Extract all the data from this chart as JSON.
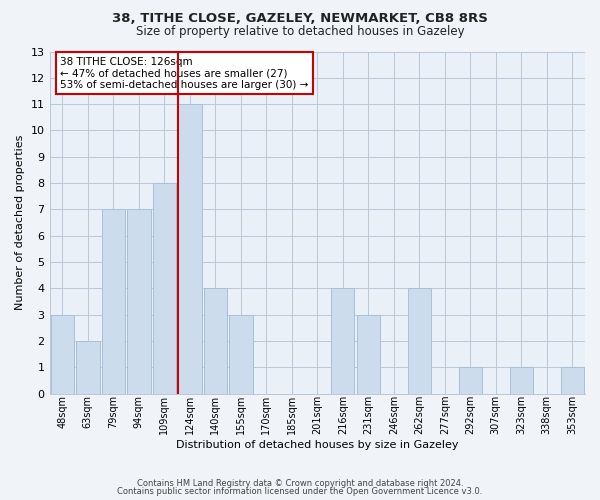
{
  "title_line1": "38, TITHE CLOSE, GAZELEY, NEWMARKET, CB8 8RS",
  "title_line2": "Size of property relative to detached houses in Gazeley",
  "xlabel": "Distribution of detached houses by size in Gazeley",
  "ylabel": "Number of detached properties",
  "footer_line1": "Contains HM Land Registry data © Crown copyright and database right 2024.",
  "footer_line2": "Contains public sector information licensed under the Open Government Licence v3.0.",
  "annotation_line1": "38 TITHE CLOSE: 126sqm",
  "annotation_line2": "← 47% of detached houses are smaller (27)",
  "annotation_line3": "53% of semi-detached houses are larger (30) →",
  "bar_labels": [
    "48sqm",
    "63sqm",
    "79sqm",
    "94sqm",
    "109sqm",
    "124sqm",
    "140sqm",
    "155sqm",
    "170sqm",
    "185sqm",
    "201sqm",
    "216sqm",
    "231sqm",
    "246sqm",
    "262sqm",
    "277sqm",
    "292sqm",
    "307sqm",
    "323sqm",
    "338sqm",
    "353sqm"
  ],
  "bar_values": [
    3,
    2,
    7,
    7,
    8,
    11,
    4,
    3,
    0,
    0,
    0,
    4,
    3,
    0,
    4,
    0,
    1,
    0,
    1,
    0,
    1
  ],
  "bar_color": "#ccdcec",
  "bar_edgecolor": "#a8c0d8",
  "highlight_index": 5,
  "highlight_line_color": "#cc0000",
  "ylim": [
    0,
    13
  ],
  "yticks": [
    0,
    1,
    2,
    3,
    4,
    5,
    6,
    7,
    8,
    9,
    10,
    11,
    12,
    13
  ],
  "bg_color": "#f0f4f8",
  "plot_bg_color": "#eaf0f8",
  "grid_color": "#b8c8d8",
  "annotation_box_edgecolor": "#cc0000",
  "annotation_box_facecolor": "#ffffff"
}
